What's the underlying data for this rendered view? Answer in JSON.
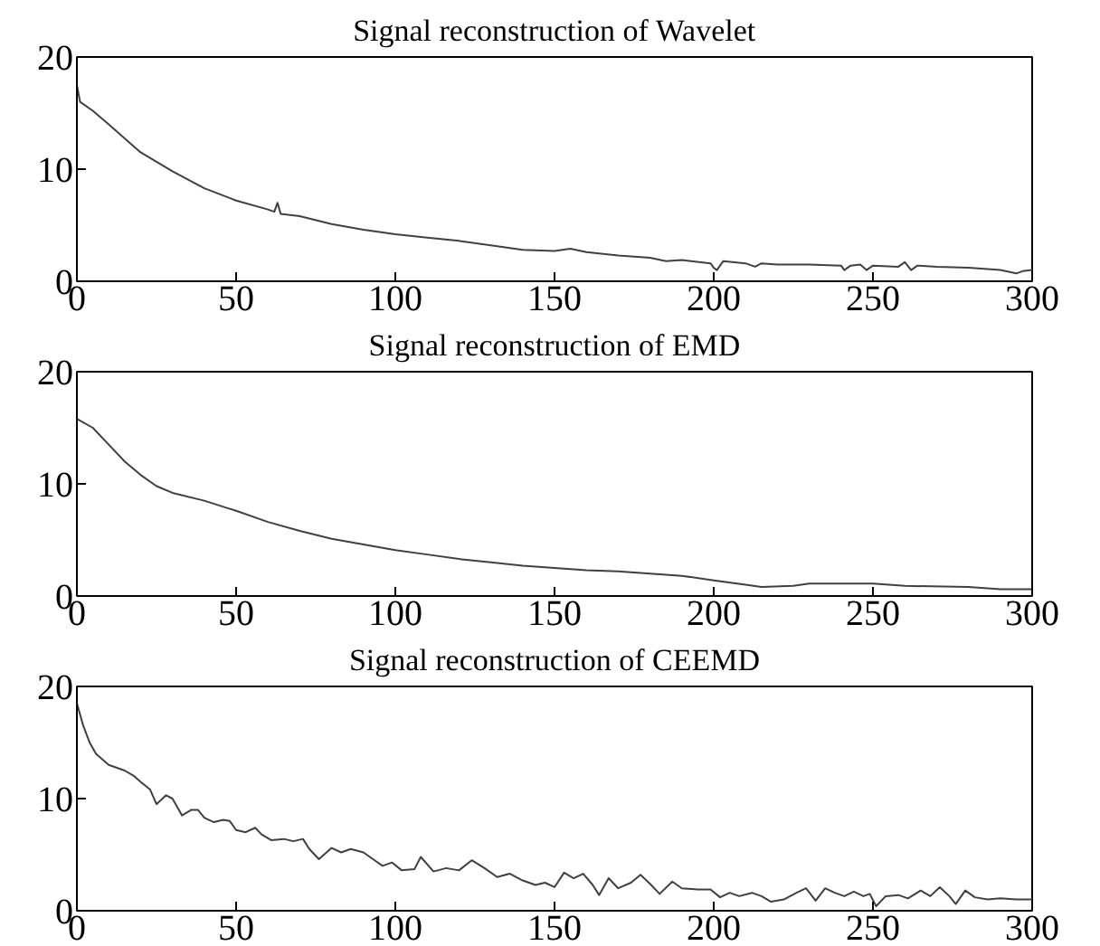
{
  "chart_data": [
    {
      "type": "line",
      "title": "Signal reconstruction of Wavelet",
      "color": "#404040",
      "xlim": [
        0,
        300
      ],
      "ylim": [
        0,
        20
      ],
      "xticks": [
        0,
        50,
        100,
        150,
        200,
        250,
        300
      ],
      "yticks": [
        0,
        10,
        20
      ],
      "x": [
        0,
        1,
        5,
        10,
        20,
        30,
        40,
        50,
        60,
        62,
        63,
        64,
        70,
        80,
        90,
        100,
        110,
        120,
        130,
        140,
        150,
        155,
        160,
        170,
        180,
        185,
        190,
        199,
        200,
        201,
        203,
        210,
        213,
        215,
        220,
        230,
        240,
        241,
        243,
        246,
        248,
        250,
        258,
        260,
        262,
        264,
        270,
        280,
        290,
        295,
        297,
        300
      ],
      "values": [
        17.5,
        16,
        15.2,
        14,
        11.5,
        9.8,
        8.3,
        7.2,
        6.4,
        6.2,
        7.0,
        6.0,
        5.8,
        5.1,
        4.6,
        4.2,
        3.9,
        3.6,
        3.2,
        2.8,
        2.7,
        2.9,
        2.6,
        2.3,
        2.1,
        1.8,
        1.9,
        1.6,
        1.2,
        1.0,
        1.8,
        1.6,
        1.3,
        1.6,
        1.5,
        1.5,
        1.4,
        1.0,
        1.4,
        1.5,
        1.0,
        1.4,
        1.3,
        1.7,
        1.0,
        1.4,
        1.3,
        1.2,
        1.0,
        0.7,
        0.9,
        1.0
      ]
    },
    {
      "type": "line",
      "title": "Signal reconstruction of EMD",
      "color": "#404040",
      "xlim": [
        0,
        300
      ],
      "ylim": [
        0,
        20
      ],
      "xticks": [
        0,
        50,
        100,
        150,
        200,
        250,
        300
      ],
      "yticks": [
        0,
        10,
        20
      ],
      "x": [
        0,
        5,
        10,
        15,
        20,
        25,
        30,
        40,
        50,
        60,
        70,
        80,
        90,
        100,
        110,
        120,
        130,
        140,
        150,
        160,
        170,
        180,
        190,
        200,
        210,
        215,
        225,
        230,
        250,
        260,
        280,
        290,
        300
      ],
      "values": [
        15.8,
        15,
        13.5,
        12,
        10.8,
        9.8,
        9.2,
        8.5,
        7.6,
        6.6,
        5.8,
        5.1,
        4.6,
        4.1,
        3.7,
        3.3,
        3.0,
        2.7,
        2.5,
        2.3,
        2.2,
        2.0,
        1.8,
        1.4,
        1.0,
        0.8,
        0.9,
        1.1,
        1.1,
        0.9,
        0.8,
        0.6,
        0.6
      ]
    },
    {
      "type": "line",
      "title": "Signal reconstruction of CEEMD",
      "color": "#404040",
      "xlim": [
        0,
        300
      ],
      "ylim": [
        0,
        20
      ],
      "xticks": [
        0,
        50,
        100,
        150,
        200,
        250,
        300
      ],
      "yticks": [
        0,
        10,
        20
      ],
      "x": [
        0,
        2,
        4,
        6,
        10,
        15,
        18,
        20,
        23,
        25,
        28,
        30,
        33,
        36,
        38,
        40,
        43,
        46,
        48,
        50,
        53,
        56,
        58,
        61,
        65,
        68,
        71,
        73,
        76,
        80,
        83,
        86,
        90,
        93,
        96,
        99,
        102,
        106,
        108,
        112,
        116,
        120,
        124,
        128,
        132,
        136,
        140,
        144,
        147,
        150,
        153,
        156,
        159,
        162,
        164,
        167,
        170,
        174,
        177,
        180,
        183,
        187,
        190,
        195,
        199,
        202,
        205,
        208,
        212,
        215,
        218,
        222,
        226,
        229,
        232,
        235,
        238,
        241,
        244,
        247,
        249,
        251,
        254,
        258,
        261,
        265,
        268,
        271,
        274,
        276,
        279,
        282,
        286,
        290,
        295,
        300
      ],
      "values": [
        18.5,
        16.5,
        15,
        14,
        13,
        12.5,
        12,
        11.5,
        10.8,
        9.5,
        10.3,
        10,
        8.5,
        9.0,
        9,
        8.3,
        7.9,
        8.1,
        8.0,
        7.2,
        7.0,
        7.4,
        6.8,
        6.3,
        6.4,
        6.2,
        6.4,
        5.5,
        4.6,
        5.6,
        5.2,
        5.5,
        5.2,
        4.6,
        4.0,
        4.3,
        3.6,
        3.7,
        4.8,
        3.5,
        3.8,
        3.6,
        4.5,
        3.8,
        3.0,
        3.3,
        2.7,
        2.3,
        2.5,
        2.1,
        3.4,
        2.9,
        3.3,
        2.3,
        1.4,
        2.9,
        2.0,
        2.5,
        3.2,
        2.4,
        1.5,
        2.6,
        2.0,
        1.9,
        1.9,
        1.2,
        1.6,
        1.3,
        1.6,
        1.3,
        0.8,
        1.0,
        1.6,
        2.0,
        0.9,
        2.0,
        1.6,
        1.3,
        1.7,
        1.3,
        1.5,
        0.4,
        1.3,
        1.4,
        1.1,
        1.8,
        1.3,
        2.1,
        1.3,
        0.6,
        1.8,
        1.2,
        1.0,
        1.1,
        1.0,
        1.0
      ]
    }
  ]
}
